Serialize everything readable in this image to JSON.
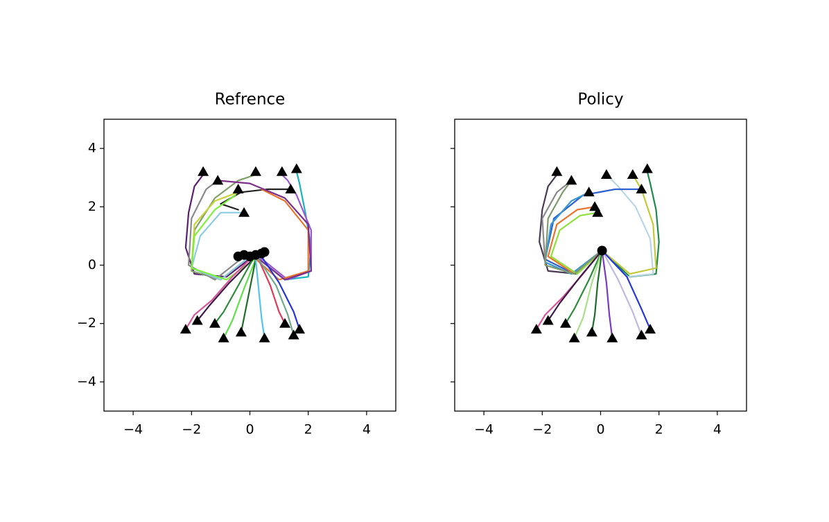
{
  "chart_data": [
    {
      "type": "line",
      "title": "Refrence",
      "xlim": [
        -5,
        5
      ],
      "ylim": [
        -5,
        5
      ],
      "xticks": [
        {
          "value": -4,
          "label": "−4"
        },
        {
          "value": -2,
          "label": "−2"
        },
        0,
        2,
        4
      ],
      "yticks": [
        {
          "value": -4,
          "label": "−4"
        },
        {
          "value": -2,
          "label": "−2"
        },
        0,
        2,
        4
      ],
      "ytick_labels": true,
      "series": [
        {
          "color": "#5b1f6e",
          "x": [
            0.1,
            -0.8,
            -1.9,
            -2.2,
            -2.1,
            -1.9,
            -1.6
          ],
          "y": [
            0.3,
            -0.4,
            -0.3,
            0.6,
            1.8,
            2.7,
            3.1
          ]
        },
        {
          "color": "#17b3c0",
          "x": [
            0.2,
            1.2,
            2.0,
            2.1,
            1.9,
            1.7,
            1.6
          ],
          "y": [
            0.3,
            -0.5,
            -0.4,
            0.6,
            1.8,
            2.8,
            3.2
          ]
        },
        {
          "color": "#7fa06a",
          "x": [
            0,
            -1.0,
            -2.0,
            -1.9,
            -1.2,
            -0.4,
            0.2
          ],
          "y": [
            0.3,
            -0.5,
            -0.2,
            1.2,
            2.3,
            2.9,
            3.1
          ]
        },
        {
          "color": "#8a8a8a",
          "x": [
            -0.2,
            -1.2,
            -2.1,
            -2.0,
            -1.5,
            -1.1
          ],
          "y": [
            0.3,
            -0.5,
            0,
            1.6,
            2.6,
            2.9
          ]
        },
        {
          "color": "#9b59d0",
          "x": [
            0.3,
            1.3,
            2.1,
            2.1,
            1.6,
            1.3,
            1.1
          ],
          "y": [
            0.3,
            -0.5,
            -0.2,
            1.2,
            2.4,
            2.9,
            3.1
          ]
        },
        {
          "color": "#c9d23a",
          "x": [
            0,
            -1.0,
            -2.0,
            -1.9,
            -1.2,
            -0.4
          ],
          "y": [
            0.3,
            -0.5,
            -0.1,
            1.4,
            2.2,
            2.5
          ]
        },
        {
          "color": "#222222",
          "x": [
            -0.4,
            -1.0,
            -0.3,
            0.6,
            1.4
          ],
          "y": [
            1.9,
            2.1,
            2.5,
            2.6,
            2.6
          ]
        },
        {
          "color": "#8ccbe6",
          "x": [
            0,
            -1.0,
            -2.0,
            -1.7,
            -1.0,
            -0.2
          ],
          "y": [
            0.3,
            -0.5,
            -0.1,
            1.0,
            1.8,
            1.8
          ]
        },
        {
          "color": "#e8742c",
          "x": [
            0.1,
            1.0,
            2.0,
            2.0,
            1.2,
            0.4
          ],
          "y": [
            0.3,
            -0.5,
            -0.2,
            1.2,
            2.2,
            2.6
          ]
        },
        {
          "color": "#7d2f8a",
          "x": [
            0.2,
            1.2,
            2.1,
            2.0,
            1.2,
            0.0,
            -1.1
          ],
          "y": [
            0.3,
            -0.5,
            -0.2,
            1.4,
            2.3,
            2.8,
            2.9
          ]
        },
        {
          "color": "#7cf03a",
          "x": [
            0.3,
            -0.8,
            -2.0,
            -1.9,
            -1.2,
            -0.5
          ],
          "y": [
            0.3,
            -0.5,
            -0.1,
            1.0,
            1.9,
            2.4
          ]
        },
        {
          "color": "#d6589a",
          "x": [
            0,
            -0.6,
            -1.3,
            -1.9,
            -2.2
          ],
          "y": [
            0.2,
            -0.4,
            -1.2,
            -1.7,
            -2.2
          ]
        },
        {
          "color": "#3d1c47",
          "x": [
            0.1,
            -0.7,
            -1.4,
            -1.8
          ],
          "y": [
            0.2,
            -0.6,
            -1.4,
            -1.9
          ]
        },
        {
          "color": "#2e8b3c",
          "x": [
            0.1,
            -0.4,
            -0.9,
            -1.2
          ],
          "y": [
            0.2,
            -0.7,
            -1.6,
            -2.0
          ]
        },
        {
          "color": "#5fe04a",
          "x": [
            0.2,
            -0.2,
            -0.6,
            -0.9
          ],
          "y": [
            0.2,
            -0.8,
            -1.9,
            -2.5
          ]
        },
        {
          "color": "#1f6b2a",
          "x": [
            0.2,
            0,
            -0.2,
            -0.3
          ],
          "y": [
            0.2,
            -0.8,
            -1.8,
            -2.3
          ]
        },
        {
          "color": "#56c3ee",
          "x": [
            0.2,
            0.3,
            0.4,
            0.5
          ],
          "y": [
            0.2,
            -0.8,
            -1.8,
            -2.5
          ]
        },
        {
          "color": "#e03a5a",
          "x": [
            0.3,
            0.7,
            1.0,
            1.2
          ],
          "y": [
            0.2,
            -0.7,
            -1.6,
            -2.0
          ]
        },
        {
          "color": "#2336d8",
          "x": [
            0.4,
            1.0,
            1.5,
            1.7
          ],
          "y": [
            0.3,
            -0.6,
            -1.6,
            -2.2
          ]
        },
        {
          "color": "#6fa88a",
          "x": [
            0.3,
            0.9,
            1.3,
            1.5
          ],
          "y": [
            0.2,
            -0.7,
            -1.7,
            -2.4
          ]
        },
        {
          "color": "#000000",
          "marker": "circle",
          "x": [
            -0.4,
            -0.2,
            0,
            0.2,
            0.4,
            0.5
          ],
          "y": [
            0.3,
            0.35,
            0.3,
            0.35,
            0.4,
            0.45
          ]
        },
        {
          "color": "#000000",
          "marker": "triangle",
          "x": [
            -1.6,
            -1.1,
            0.2,
            1.1,
            1.6,
            -0.4,
            1.4,
            -0.2,
            -2.2,
            -1.8,
            -1.2,
            -0.9,
            -0.3,
            0.5,
            1.2,
            1.7,
            1.5
          ],
          "y": [
            3.2,
            2.9,
            3.2,
            3.2,
            3.3,
            2.6,
            2.6,
            1.8,
            -2.2,
            -1.9,
            -2.0,
            -2.5,
            -2.3,
            -2.5,
            -2.0,
            -2.2,
            -2.4
          ]
        }
      ]
    },
    {
      "type": "line",
      "title": "Policy",
      "xlim": [
        -5,
        5
      ],
      "ylim": [
        -5,
        5
      ],
      "xticks": [
        {
          "value": -4,
          "label": "−4"
        },
        {
          "value": -2,
          "label": "−2"
        },
        0,
        2,
        4
      ],
      "yticks": [
        -4,
        -2,
        0,
        2,
        4
      ],
      "ytick_labels": false,
      "series": [
        {
          "color": "#4a3a55",
          "x": [
            0.05,
            -0.8,
            -1.8,
            -2.1,
            -2.0,
            -1.8,
            -1.5
          ],
          "y": [
            0.5,
            -0.3,
            -0.2,
            0.8,
            1.9,
            2.7,
            3.1
          ]
        },
        {
          "color": "#1f8a4a",
          "x": [
            0.05,
            1.0,
            1.9,
            2.0,
            1.9,
            1.7,
            1.6
          ],
          "y": [
            0.5,
            -0.4,
            -0.3,
            0.8,
            1.9,
            2.8,
            3.2
          ]
        },
        {
          "color": "#b9d6e8",
          "x": [
            0.05,
            0.9,
            1.8,
            1.7,
            1.2,
            0.6,
            0.2
          ],
          "y": [
            0.5,
            -0.4,
            -0.3,
            0.9,
            2.0,
            2.7,
            3.1
          ]
        },
        {
          "color": "#8a8a8a",
          "x": [
            0.05,
            -1.0,
            -1.9,
            -2.0,
            -1.5,
            -1.0
          ],
          "y": [
            0.5,
            -0.3,
            0.1,
            1.6,
            2.5,
            2.9
          ]
        },
        {
          "color": "#c4c83a",
          "x": [
            0.05,
            1.0,
            1.9,
            1.8,
            1.4,
            1.1
          ],
          "y": [
            0.5,
            -0.3,
            -0.1,
            1.4,
            2.6,
            3.1
          ]
        },
        {
          "color": "#2e5fd0",
          "x": [
            0.05,
            -0.9,
            -1.9,
            -1.6,
            -0.6,
            0.5,
            1.4
          ],
          "y": [
            0.5,
            -0.3,
            0.2,
            1.6,
            2.4,
            2.6,
            2.6
          ]
        },
        {
          "color": "#3a9bd0",
          "x": [
            0.05,
            -1.0,
            -1.9,
            -1.7,
            -1.0,
            -0.4
          ],
          "y": [
            0.5,
            -0.3,
            0.1,
            1.4,
            2.2,
            2.5
          ]
        },
        {
          "color": "#e8742c",
          "x": [
            0.05,
            -0.9,
            -1.8,
            -1.5,
            -0.8,
            -0.2
          ],
          "y": [
            0.5,
            -0.3,
            0.3,
            1.4,
            1.9,
            2.0
          ]
        },
        {
          "color": "#8fe03a",
          "x": [
            0.05,
            -0.8,
            -1.7,
            -1.4,
            -0.7,
            -0.1
          ],
          "y": [
            0.5,
            -0.3,
            0.3,
            1.2,
            1.7,
            1.8
          ]
        },
        {
          "color": "#7e9a6a",
          "x": [
            0.05,
            -0.9,
            -1.9,
            -1.8,
            -1.3,
            -1.0
          ],
          "y": [
            0.5,
            -0.3,
            0.0,
            1.6,
            2.5,
            2.9
          ]
        },
        {
          "color": "#d6589a",
          "x": [
            0.05,
            -0.6,
            -1.3,
            -1.9,
            -2.2
          ],
          "y": [
            0.5,
            -0.3,
            -1.1,
            -1.7,
            -2.2
          ]
        },
        {
          "color": "#3d1c47",
          "x": [
            0.05,
            -0.7,
            -1.4,
            -1.8
          ],
          "y": [
            0.5,
            -0.4,
            -1.3,
            -1.9
          ]
        },
        {
          "color": "#2e8b3c",
          "x": [
            0.05,
            -0.4,
            -0.9,
            -1.2
          ],
          "y": [
            0.5,
            -0.5,
            -1.5,
            -2.0
          ]
        },
        {
          "color": "#a8e08a",
          "x": [
            0.05,
            -0.3,
            -0.6,
            -0.9
          ],
          "y": [
            0.5,
            -0.6,
            -1.8,
            -2.5
          ]
        },
        {
          "color": "#1f6b2a",
          "x": [
            0.05,
            -0.1,
            -0.2,
            -0.3
          ],
          "y": [
            0.5,
            -0.6,
            -1.7,
            -2.3
          ]
        },
        {
          "color": "#7a3ac0",
          "x": [
            0.05,
            0.2,
            0.3,
            0.4
          ],
          "y": [
            0.5,
            -0.6,
            -1.7,
            -2.5
          ]
        },
        {
          "color": "#c0b8e0",
          "x": [
            0.05,
            0.6,
            1.1,
            1.4
          ],
          "y": [
            0.5,
            -0.5,
            -1.6,
            -2.4
          ]
        },
        {
          "color": "#2336d8",
          "x": [
            0.05,
            0.9,
            1.4,
            1.7
          ],
          "y": [
            0.5,
            -0.4,
            -1.5,
            -2.2
          ]
        },
        {
          "color": "#000000",
          "marker": "circle",
          "x": [
            0.05
          ],
          "y": [
            0.5
          ]
        },
        {
          "color": "#000000",
          "marker": "triangle",
          "x": [
            -1.5,
            -1.0,
            0.2,
            1.1,
            1.6,
            -0.4,
            1.4,
            -0.2,
            -0.1,
            -2.2,
            -1.8,
            -1.2,
            -0.9,
            -0.3,
            0.4,
            1.4,
            1.7
          ],
          "y": [
            3.2,
            2.9,
            3.1,
            3.1,
            3.3,
            2.5,
            2.6,
            2.0,
            1.8,
            -2.2,
            -1.9,
            -2.0,
            -2.5,
            -2.3,
            -2.5,
            -2.4,
            -2.2
          ]
        }
      ]
    }
  ]
}
